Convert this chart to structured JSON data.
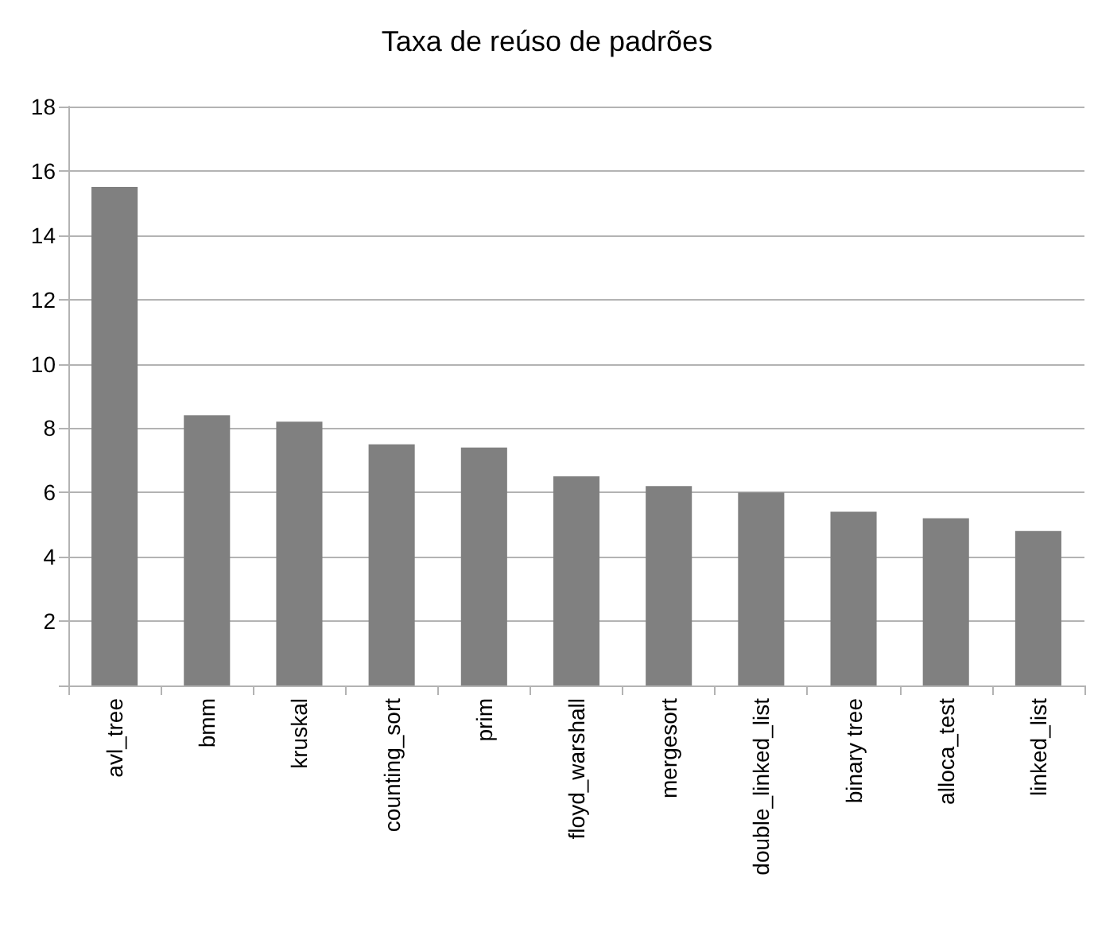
{
  "chart_data": {
    "type": "bar",
    "title": "Taxa de reúso de padrões",
    "categories": [
      "avl_tree",
      "bmm",
      "kruskal",
      "counting_sort",
      "prim",
      "floyd_warshall",
      "mergesort",
      "double_linked_list",
      "binary tree",
      "alloca_test",
      "linked_list"
    ],
    "values": [
      15.5,
      8.4,
      8.2,
      7.5,
      7.4,
      6.5,
      6.2,
      6.0,
      5.4,
      5.2,
      4.8
    ],
    "color": "#808080",
    "ylim": [
      0,
      18
    ],
    "yticks": [
      {
        "value": 0,
        "label": null
      },
      2,
      4,
      6,
      8,
      10,
      12,
      14,
      16,
      18
    ],
    "grid": "y"
  }
}
